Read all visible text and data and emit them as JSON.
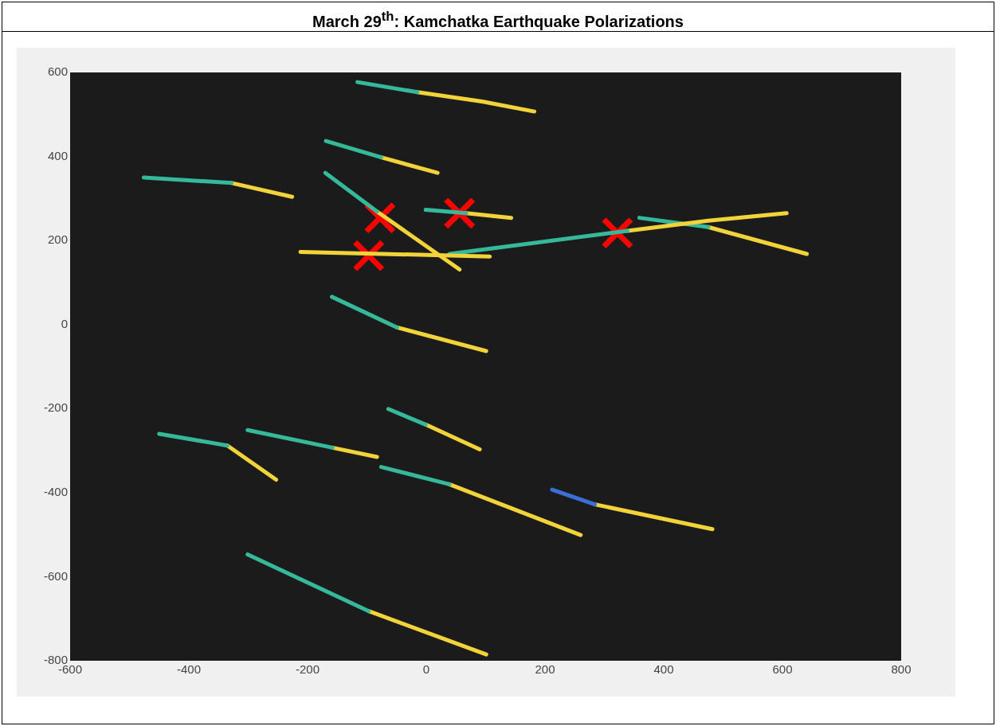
{
  "chart_data": {
    "type": "line",
    "title": "March 29$^{th}$: Kamchatka Earthquake Polarizations",
    "xlim": [
      -600,
      800
    ],
    "xticks": [
      -600,
      -400,
      -200,
      0,
      200,
      400,
      600,
      800
    ],
    "ylim": [
      -800,
      600
    ],
    "yticks": [
      -800,
      -600,
      -400,
      -200,
      0,
      200,
      400,
      600
    ],
    "grid": false,
    "legend": false,
    "line_style": "solid",
    "series": [
      {
        "type": "line",
        "color": "#35b99a",
        "x": [
          -116,
          -15
        ],
        "values": [
          577,
          553
        ]
      },
      {
        "type": "line",
        "color": "#f2d43a",
        "x": [
          -15,
          94,
          182
        ],
        "values": [
          553,
          531,
          507
        ]
      },
      {
        "type": "line",
        "color": "#35b99a",
        "x": [
          -169,
          -76
        ],
        "values": [
          437,
          398
        ]
      },
      {
        "type": "line",
        "color": "#f2d43a",
        "x": [
          -76,
          19
        ],
        "values": [
          398,
          361
        ]
      },
      {
        "type": "line",
        "color": "#35b99a",
        "x": [
          -476,
          -328
        ],
        "values": [
          350,
          337
        ]
      },
      {
        "type": "line",
        "color": "#f2d43a",
        "x": [
          -328,
          -226
        ],
        "values": [
          337,
          304
        ]
      },
      {
        "type": "line",
        "color": "#35b99a",
        "x": [
          -170,
          -83
        ],
        "values": [
          361,
          269
        ]
      },
      {
        "type": "line",
        "color": "#f2d43a",
        "x": [
          -83,
          56
        ],
        "values": [
          269,
          131
        ]
      },
      {
        "type": "line",
        "color": "#35b99a",
        "x": [
          -1,
          67
        ],
        "values": [
          273,
          265
        ]
      },
      {
        "type": "line",
        "color": "#f2d43a",
        "x": [
          67,
          143
        ],
        "values": [
          265,
          254
        ]
      },
      {
        "type": "line",
        "color": "#f2d43a",
        "x": [
          -212,
          107
        ],
        "values": [
          173,
          162
        ]
      },
      {
        "type": "line",
        "color": "#35b99a",
        "x": [
          39,
          339
        ],
        "values": [
          168,
          223
        ]
      },
      {
        "type": "line",
        "color": "#f2d43a",
        "x": [
          339,
          475,
          607
        ],
        "values": [
          223,
          247,
          265
        ]
      },
      {
        "type": "line",
        "color": "#35b99a",
        "x": [
          359,
          475
        ],
        "values": [
          254,
          232
        ]
      },
      {
        "type": "line",
        "color": "#f2d43a",
        "x": [
          475,
          641
        ],
        "values": [
          232,
          168
        ]
      },
      {
        "type": "line",
        "color": "#35b99a",
        "x": [
          -159,
          -49
        ],
        "values": [
          66,
          -7
        ]
      },
      {
        "type": "line",
        "color": "#f2d43a",
        "x": [
          -49,
          101
        ],
        "values": [
          -7,
          -63
        ]
      },
      {
        "type": "line",
        "color": "#35b99a",
        "x": [
          -64,
          -1
        ],
        "values": [
          -201,
          -238
        ]
      },
      {
        "type": "line",
        "color": "#f2d43a",
        "x": [
          -1,
          90
        ],
        "values": [
          -238,
          -297
        ]
      },
      {
        "type": "line",
        "color": "#35b99a",
        "x": [
          -450,
          -335
        ],
        "values": [
          -260,
          -288
        ]
      },
      {
        "type": "line",
        "color": "#f2d43a",
        "x": [
          -335,
          -253
        ],
        "values": [
          -288,
          -369
        ]
      },
      {
        "type": "line",
        "color": "#35b99a",
        "x": [
          -301,
          -158
        ],
        "values": [
          -251,
          -293
        ]
      },
      {
        "type": "line",
        "color": "#f2d43a",
        "x": [
          -158,
          -83
        ],
        "values": [
          -293,
          -315
        ]
      },
      {
        "type": "line",
        "color": "#35b99a",
        "x": [
          -76,
          39
        ],
        "values": [
          -339,
          -380
        ]
      },
      {
        "type": "line",
        "color": "#f2d43a",
        "x": [
          39,
          260
        ],
        "values": [
          -380,
          -501
        ]
      },
      {
        "type": "line",
        "color": "#3a6fd8",
        "x": [
          212,
          284
        ],
        "values": [
          -393,
          -428
        ]
      },
      {
        "type": "line",
        "color": "#f2d43a",
        "x": [
          284,
          482
        ],
        "values": [
          -428,
          -487
        ]
      },
      {
        "type": "line",
        "color": "#35b99a",
        "x": [
          -301,
          -97
        ],
        "values": [
          -547,
          -682
        ]
      },
      {
        "type": "line",
        "color": "#f2d43a",
        "x": [
          -97,
          101
        ],
        "values": [
          -682,
          -785
        ]
      },
      {
        "type": "scatter",
        "marker": "cross",
        "color": "#ff0000",
        "x": [
          -78,
          56,
          -97,
          322
        ],
        "values": [
          254,
          265,
          164,
          218
        ]
      }
    ]
  }
}
